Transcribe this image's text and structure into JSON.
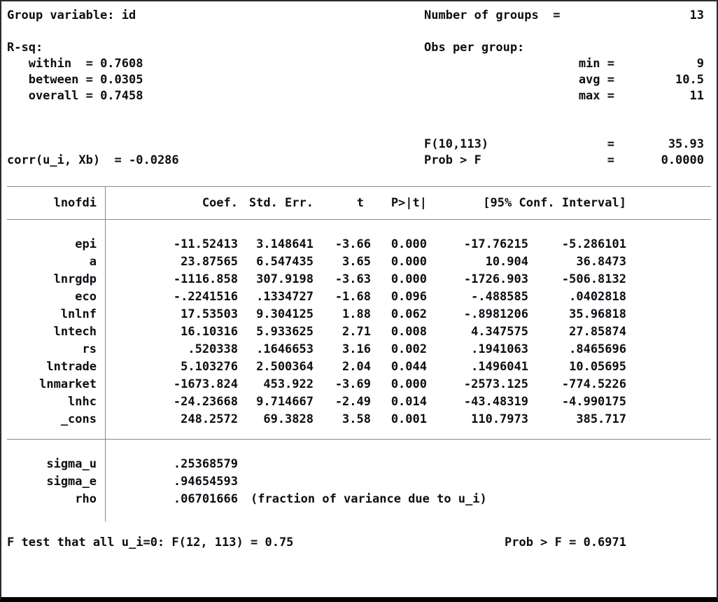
{
  "top": {
    "group_variable_label": "Group variable: ",
    "group_variable_value": "id",
    "n_groups_label": "Number of groups  =",
    "n_groups_value": "13",
    "rsq_label": "R-sq:",
    "obs_per_group_label": "Obs per group:",
    "rsq_rows": [
      {
        "label": "   within  = ",
        "value": "0.7608",
        "stat": "min =",
        "stat_value": "9"
      },
      {
        "label": "   between = ",
        "value": "0.0305",
        "stat": "avg =",
        "stat_value": "10.5"
      },
      {
        "label": "   overall = ",
        "value": "0.7458",
        "stat": "max =",
        "stat_value": "11"
      }
    ],
    "f_label": "F(10,113)",
    "f_eq": "=",
    "f_value": "35.93",
    "corr_label": "corr(u_i, Xb)  = ",
    "corr_value": "-0.0286",
    "prob_label": "Prob > F",
    "prob_eq": "=",
    "prob_value": "0.0000"
  },
  "table": {
    "headers": {
      "depvar": "lnofdi",
      "coef": "Coef.",
      "stderr": "Std. Err.",
      "t": "t",
      "p": "P>|t|",
      "ci": "[95% Conf. Interval]"
    },
    "rows": [
      {
        "var": "epi",
        "coef": "-11.52413",
        "stderr": "3.148641",
        "t": "-3.66",
        "p": "0.000",
        "ci_low": "-17.76215",
        "ci_high": "-5.286101"
      },
      {
        "var": "a",
        "coef": "23.87565",
        "stderr": "6.547435",
        "t": "3.65",
        "p": "0.000",
        "ci_low": "10.904",
        "ci_high": "36.8473"
      },
      {
        "var": "lnrgdp",
        "coef": "-1116.858",
        "stderr": "307.9198",
        "t": "-3.63",
        "p": "0.000",
        "ci_low": "-1726.903",
        "ci_high": "-506.8132"
      },
      {
        "var": "eco",
        "coef": "-.2241516",
        "stderr": ".1334727",
        "t": "-1.68",
        "p": "0.096",
        "ci_low": "-.488585",
        "ci_high": ".0402818"
      },
      {
        "var": "lnlnf",
        "coef": "17.53503",
        "stderr": "9.304125",
        "t": "1.88",
        "p": "0.062",
        "ci_low": "-.8981206",
        "ci_high": "35.96818"
      },
      {
        "var": "lntech",
        "coef": "16.10316",
        "stderr": "5.933625",
        "t": "2.71",
        "p": "0.008",
        "ci_low": "4.347575",
        "ci_high": "27.85874"
      },
      {
        "var": "rs",
        "coef": ".520338",
        "stderr": ".1646653",
        "t": "3.16",
        "p": "0.002",
        "ci_low": ".1941063",
        "ci_high": ".8465696"
      },
      {
        "var": "lntrade",
        "coef": "5.103276",
        "stderr": "2.500364",
        "t": "2.04",
        "p": "0.044",
        "ci_low": ".1496041",
        "ci_high": "10.05695"
      },
      {
        "var": "lnmarket",
        "coef": "-1673.824",
        "stderr": "453.922",
        "t": "-3.69",
        "p": "0.000",
        "ci_low": "-2573.125",
        "ci_high": "-774.5226"
      },
      {
        "var": "lnhc",
        "coef": "-24.23668",
        "stderr": "9.714667",
        "t": "-2.49",
        "p": "0.014",
        "ci_low": "-43.48319",
        "ci_high": "-4.990175"
      },
      {
        "var": "_cons",
        "coef": "248.2572",
        "stderr": "69.3828",
        "t": "3.58",
        "p": "0.001",
        "ci_low": "110.7973",
        "ci_high": "385.717"
      }
    ],
    "variance_rows": [
      {
        "var": "sigma_u",
        "value": ".25368579",
        "note": ""
      },
      {
        "var": "sigma_e",
        "value": ".94654593",
        "note": ""
      },
      {
        "var": "rho",
        "value": ".06701666",
        "note": "(fraction of variance due to u_i)"
      }
    ]
  },
  "footer": {
    "f_test_label": "F test that all u_i=0: F(12, 113) = ",
    "f_test_value": "0.75",
    "prob_label": "Prob > F = ",
    "prob_value": "0.6971"
  },
  "colors": {
    "line": "#8a8a8a",
    "border": "#2b2b2b",
    "bottom_bar": "#000000"
  }
}
